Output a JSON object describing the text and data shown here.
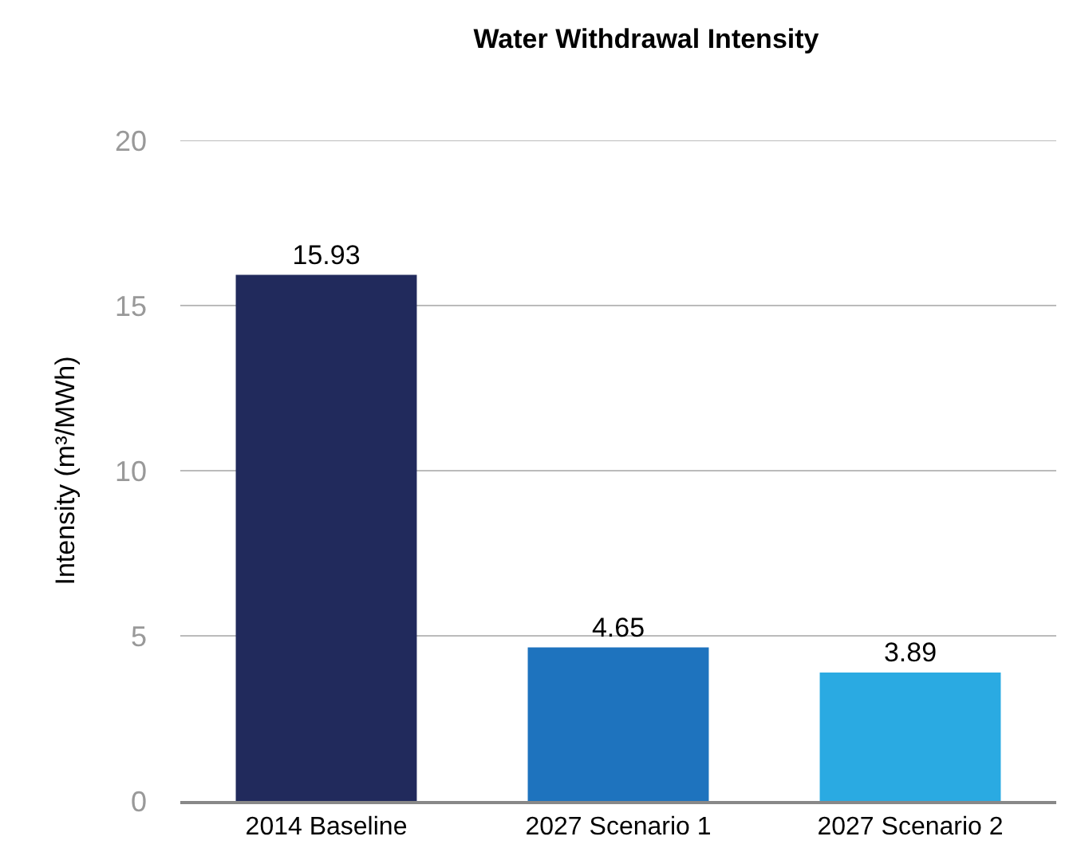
{
  "chart_data": {
    "type": "bar",
    "title": "Water Withdrawal Intensity",
    "ylabel": "Intensity (m³/MWh)",
    "categories": [
      "2014 Baseline",
      "2027 Scenario 1",
      "2027 Scenario 2"
    ],
    "values": [
      15.93,
      4.65,
      3.89
    ],
    "colors": [
      "#212a5c",
      "#1e73be",
      "#2aaae2"
    ],
    "ylim": [
      0,
      20
    ],
    "yticks": [
      0,
      5,
      10,
      15,
      20
    ],
    "grid": "y",
    "data_labels": true
  }
}
